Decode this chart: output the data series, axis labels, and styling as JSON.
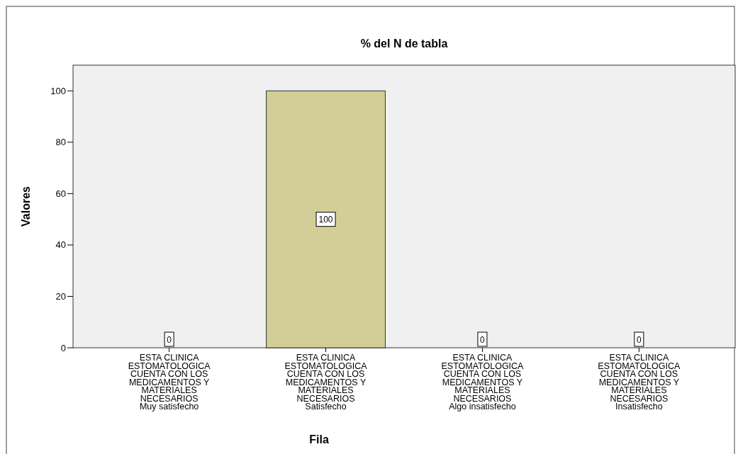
{
  "chart_data": {
    "type": "bar",
    "title": "% del N de tabla",
    "xlabel": "Fila",
    "ylabel": "Valores",
    "categories": [
      "ESTA CLINICA\nESTOMATOLOGICA\nCUENTA CON LOS\nMEDICAMENTOS Y\nMATERIALES\nNECESARIOS\nMuy satisfecho",
      "ESTA CLINICA\nESTOMATOLOGICA\nCUENTA CON LOS\nMEDICAMENTOS Y\nMATERIALES\nNECESARIOS\nSatisfecho",
      "ESTA CLINICA\nESTOMATOLOGICA\nCUENTA CON LOS\nMEDICAMENTOS Y\nMATERIALES\nNECESARIOS\nAlgo insatisfecho",
      "ESTA CLINICA\nESTOMATOLOGICA\nCUENTA CON LOS\nMEDICAMENTOS Y\nMATERIALES\nNECESARIOS\nInsatisfecho"
    ],
    "values": [
      0,
      100,
      0,
      0
    ],
    "color": "#d3ce97",
    "ylim": [
      0,
      110
    ],
    "yticks": [
      0,
      20,
      40,
      60,
      80,
      100
    ],
    "data_labels": true
  }
}
